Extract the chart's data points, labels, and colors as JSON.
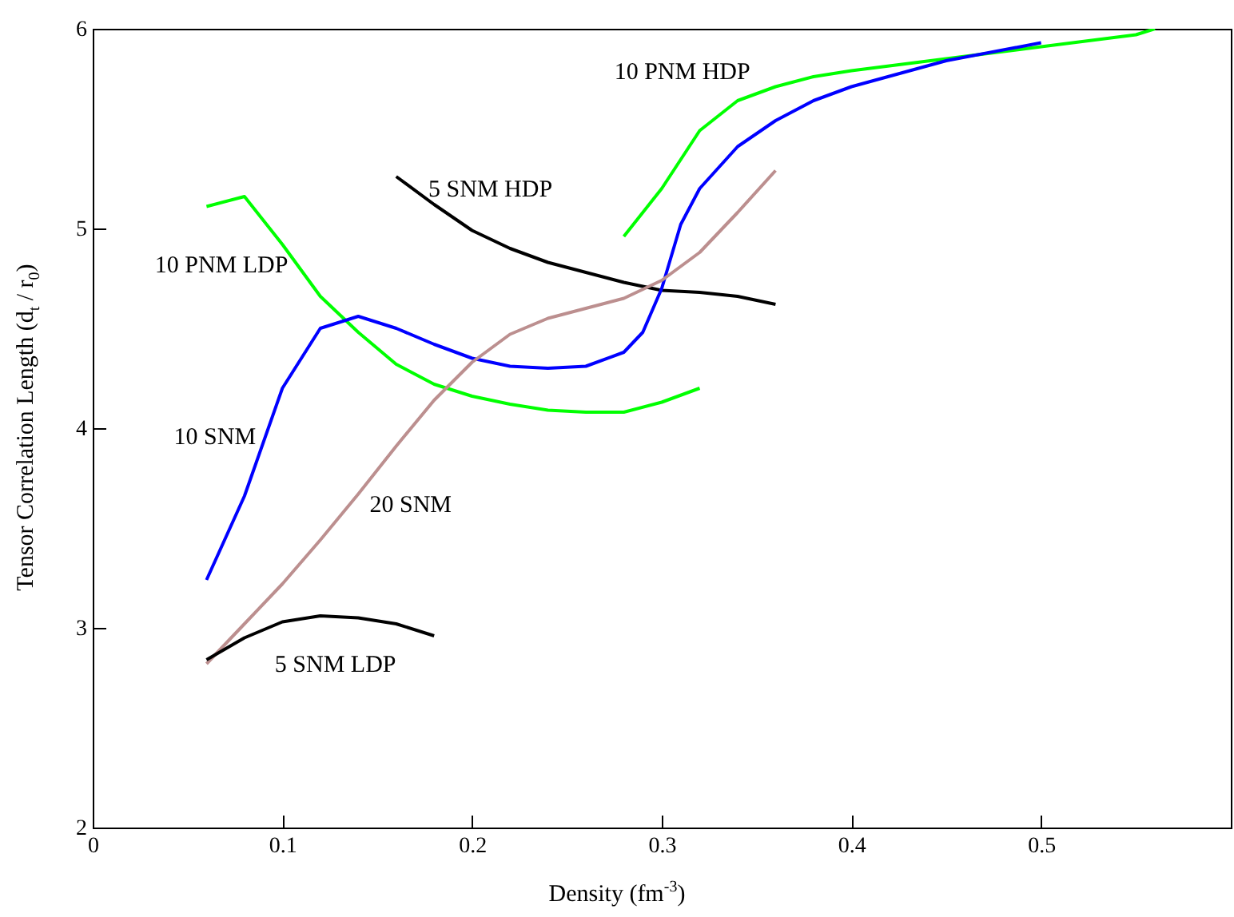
{
  "chart_data": {
    "type": "line",
    "xlabel": "Density (fm$^{-3}$)",
    "ylabel": "Tensor Correlation Length (d$_{t}$ / r$_{0}$)",
    "xlim": [
      0,
      0.6
    ],
    "xticks": [
      0,
      0.1,
      0.2,
      0.3,
      0.4,
      0.5
    ],
    "ylim": [
      2,
      6
    ],
    "yticks": [
      2,
      3,
      4,
      5,
      6
    ],
    "grid": false,
    "marker": "none",
    "line_style": "solid",
    "series": [
      {
        "name": "10 PNM HDP",
        "color": "#00ff00",
        "x": [
          0.28,
          0.3,
          0.32,
          0.34,
          0.36,
          0.38,
          0.4,
          0.45,
          0.5,
          0.55,
          0.56
        ],
        "values": [
          4.96,
          5.2,
          5.49,
          5.64,
          5.71,
          5.76,
          5.79,
          5.85,
          5.91,
          5.97,
          6.0
        ]
      },
      {
        "name": "5 SNM HDP",
        "color": "#000000",
        "x": [
          0.16,
          0.18,
          0.2,
          0.22,
          0.24,
          0.26,
          0.28,
          0.3,
          0.32,
          0.34,
          0.36
        ],
        "values": [
          5.26,
          5.12,
          4.99,
          4.9,
          4.83,
          4.78,
          4.73,
          4.69,
          4.68,
          4.66,
          4.62
        ]
      },
      {
        "name": "10 PNM LDP",
        "color": "#00ff00",
        "x": [
          0.06,
          0.08,
          0.1,
          0.12,
          0.14,
          0.16,
          0.18,
          0.2,
          0.22,
          0.24,
          0.26,
          0.28,
          0.3,
          0.32
        ],
        "values": [
          5.11,
          5.16,
          4.92,
          4.66,
          4.48,
          4.32,
          4.22,
          4.16,
          4.12,
          4.09,
          4.08,
          4.08,
          4.13,
          4.2
        ]
      },
      {
        "name": "10 SNM",
        "color": "#0000ff",
        "x": [
          0.06,
          0.08,
          0.1,
          0.12,
          0.14,
          0.16,
          0.18,
          0.2,
          0.22,
          0.24,
          0.26,
          0.28,
          0.29,
          0.3,
          0.31,
          0.32,
          0.34,
          0.36,
          0.38,
          0.4,
          0.45,
          0.5
        ],
        "values": [
          3.24,
          3.66,
          4.2,
          4.5,
          4.56,
          4.5,
          4.42,
          4.35,
          4.31,
          4.3,
          4.31,
          4.38,
          4.48,
          4.7,
          5.02,
          5.2,
          5.41,
          5.54,
          5.64,
          5.71,
          5.84,
          5.93
        ]
      },
      {
        "name": "20 SNM",
        "color": "#bc8f8f",
        "x": [
          0.06,
          0.08,
          0.1,
          0.12,
          0.14,
          0.16,
          0.18,
          0.2,
          0.22,
          0.24,
          0.26,
          0.28,
          0.3,
          0.32,
          0.34,
          0.36
        ],
        "values": [
          2.82,
          3.02,
          3.22,
          3.44,
          3.67,
          3.91,
          4.14,
          4.33,
          4.47,
          4.55,
          4.6,
          4.65,
          4.74,
          4.88,
          5.08,
          5.29
        ]
      },
      {
        "name": "5 SNM LDP",
        "color": "#000000",
        "x": [
          0.06,
          0.08,
          0.1,
          0.12,
          0.14,
          0.16,
          0.18
        ],
        "values": [
          2.84,
          2.95,
          3.03,
          3.06,
          3.05,
          3.02,
          2.96
        ]
      }
    ]
  }
}
